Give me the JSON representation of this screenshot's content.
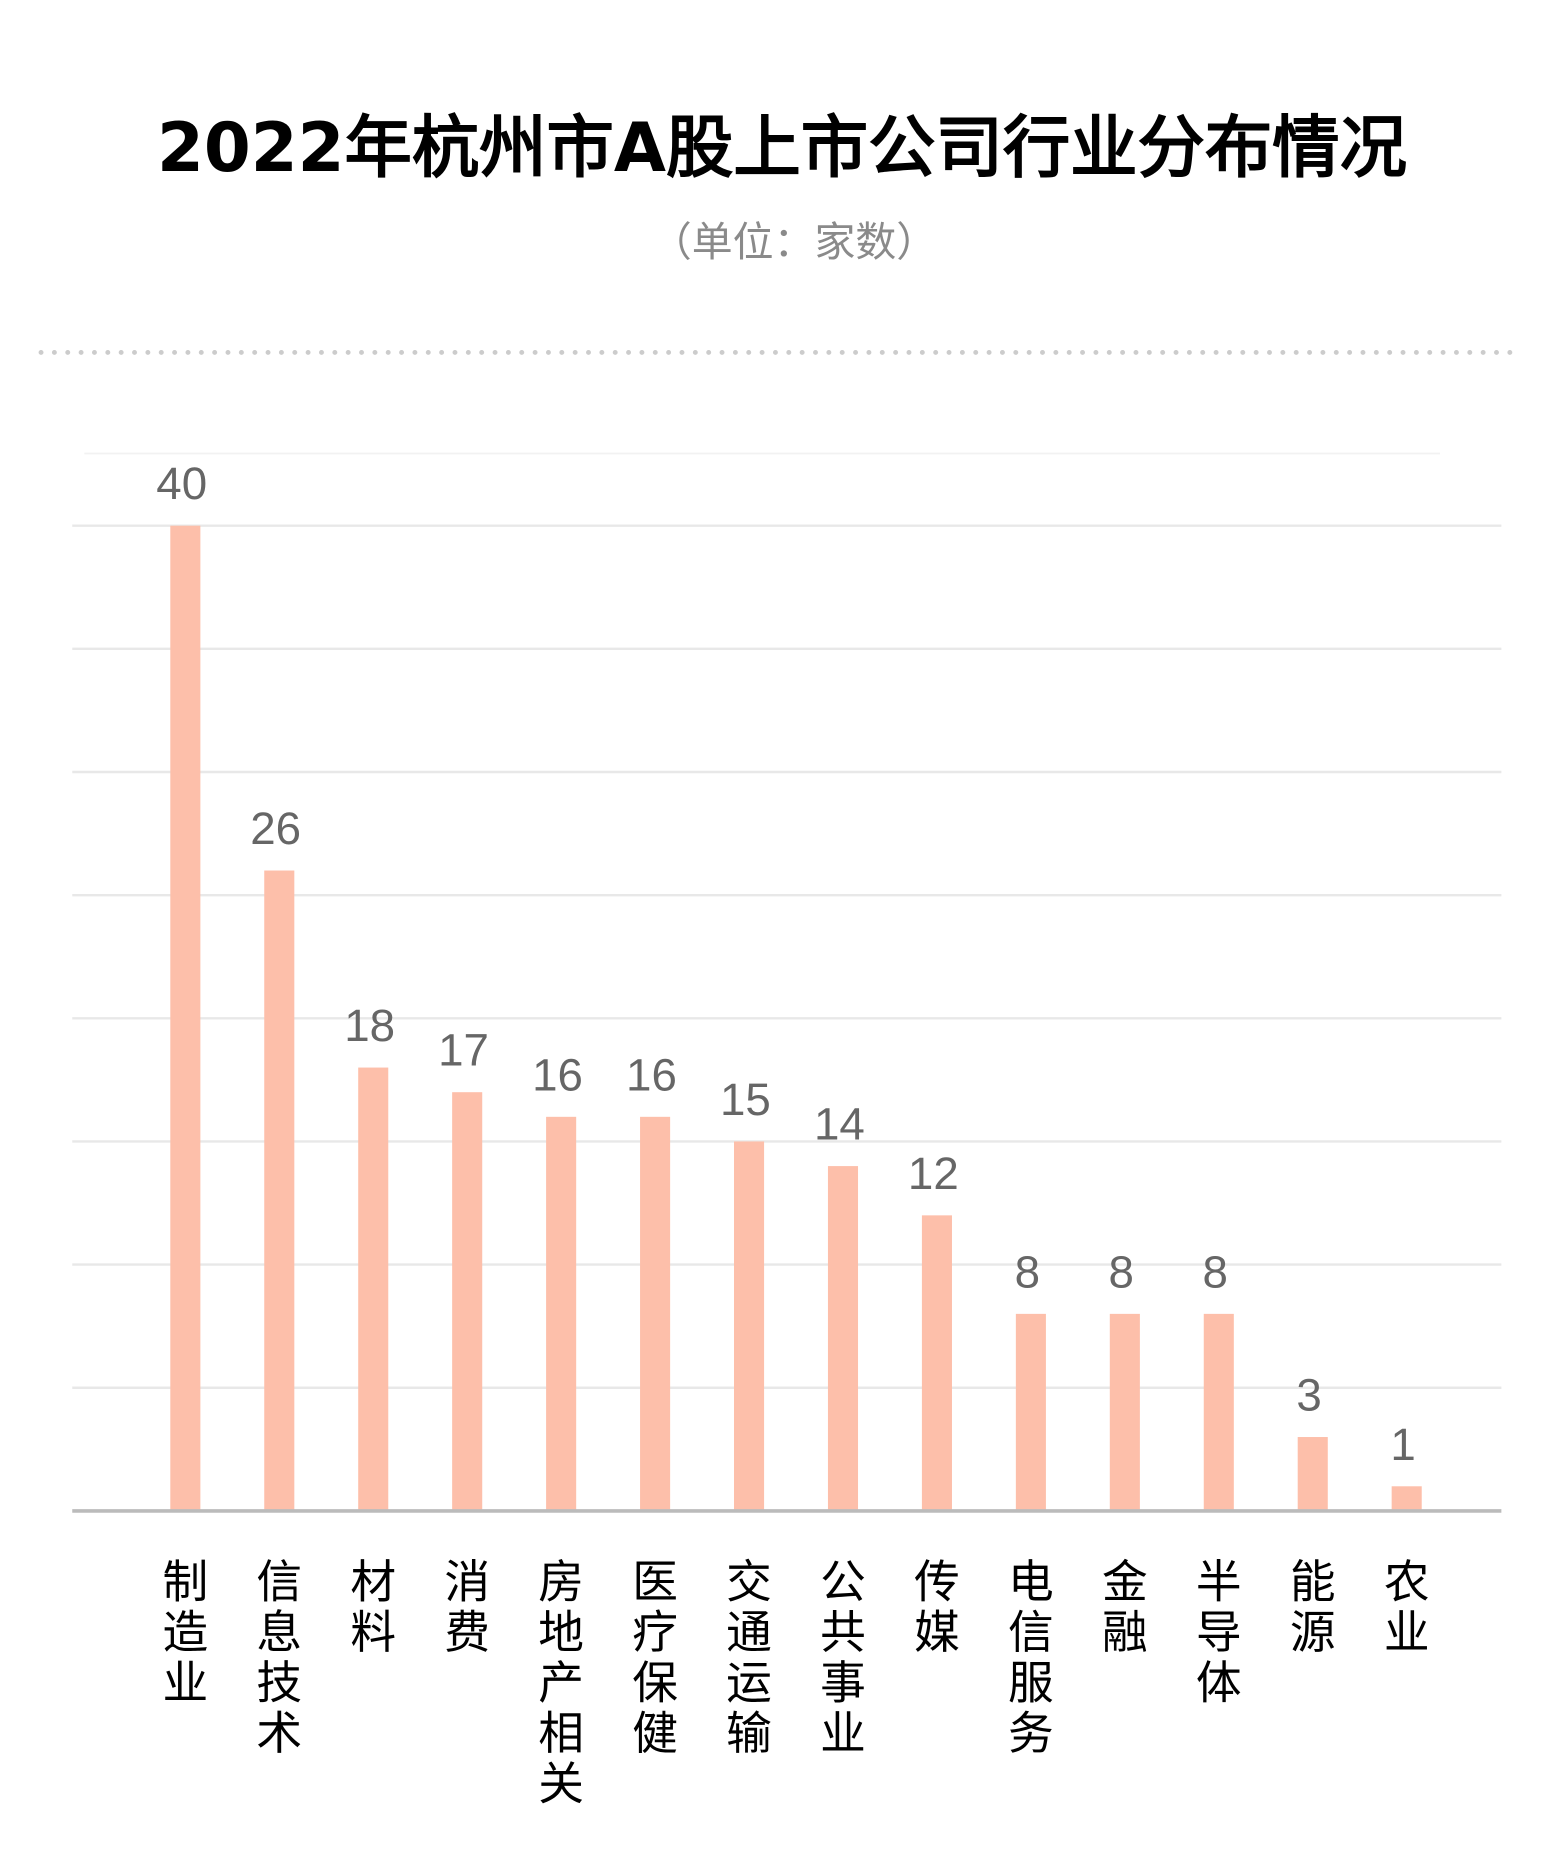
{
  "chart_data": {
    "type": "bar",
    "title": "2022年杭州市A股上市公司行业分布情况",
    "subtitle": "（单位：家数）",
    "xlabel": "",
    "ylabel": "",
    "categories": [
      "制造业",
      "信息技术",
      "材料",
      "消费",
      "房地产相关",
      "医疗保健",
      "交通运输",
      "公共事业",
      "传媒",
      "电信服务",
      "金融",
      "半导体",
      "能源",
      "农业"
    ],
    "values": [
      40,
      26,
      18,
      17,
      16,
      16,
      15,
      14,
      12,
      8,
      8,
      8,
      3,
      1
    ],
    "ylim": [
      0,
      40
    ],
    "grid_step": 5,
    "grid": true,
    "y_tick_labels_shown": false,
    "data_labels": true,
    "colors": {
      "bar": "#FDBFAA",
      "value_label": "#666666",
      "axis": "#BBBBBB",
      "grid": "#E8E8E8",
      "separator": "#CCCCCC"
    }
  }
}
